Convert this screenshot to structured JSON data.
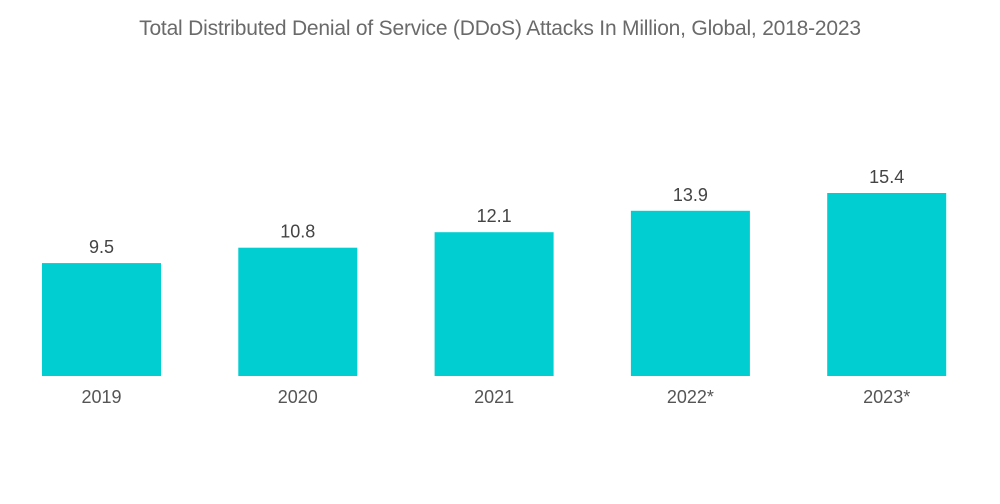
{
  "chart_data": {
    "type": "bar",
    "title": "Total Distributed Denial of Service (DDoS) Attacks In Million, Global, 2018-2023",
    "categories": [
      "2019",
      "2020",
      "2021",
      "2022*",
      "2023*"
    ],
    "values": [
      9.5,
      10.8,
      12.1,
      13.9,
      15.4
    ],
    "data_labels": [
      "9.5",
      "10.8",
      "12.1",
      "13.9",
      "15.4"
    ],
    "xlabel": "",
    "ylabel": "",
    "ylim": [
      0,
      15.4
    ],
    "grid": false,
    "legend": "none",
    "bar_color": "#00CED1"
  }
}
